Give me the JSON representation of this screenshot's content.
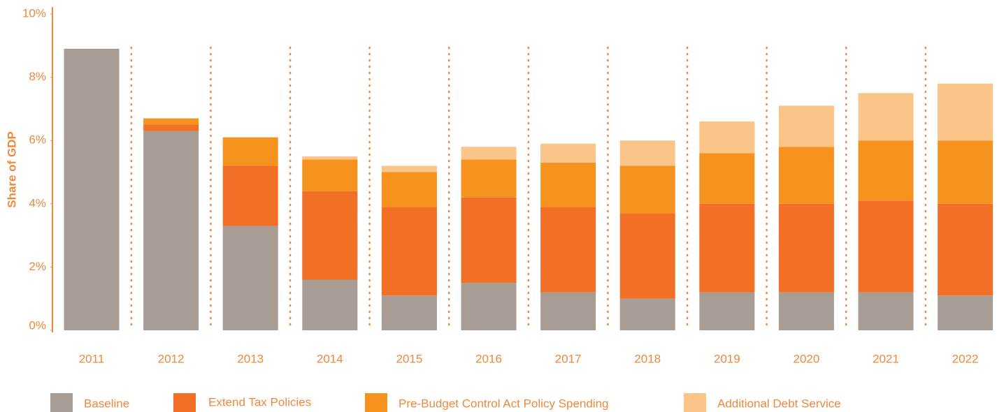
{
  "chart_data": {
    "type": "stacked_bar",
    "y_label": "Share of GDP",
    "categories": [
      "2011",
      "2012",
      "2013",
      "2014",
      "2015",
      "2016",
      "2017",
      "2018",
      "2019",
      "2020",
      "2021",
      "2022"
    ],
    "series": [
      {
        "name": "Baseline",
        "color": "#a89d94",
        "values": [
          8.9,
          6.3,
          3.3,
          1.6,
          1.1,
          1.5,
          1.2,
          1.0,
          1.2,
          1.2,
          1.2,
          1.1
        ]
      },
      {
        "name": "Extend Tax Policies",
        "color": "#f26f26",
        "values": [
          0,
          0.2,
          1.9,
          2.8,
          2.8,
          2.7,
          2.7,
          2.7,
          2.8,
          2.8,
          2.9,
          2.9
        ]
      },
      {
        "name": "Pre-Budget Control Act Policy Spending",
        "color": "#f6921e",
        "values": [
          0,
          0.2,
          0.9,
          1.0,
          1.1,
          1.2,
          1.4,
          1.5,
          1.6,
          1.8,
          1.9,
          2.0
        ]
      },
      {
        "name": "Additional Debt Service",
        "color": "#fbc58a",
        "values": [
          0,
          0,
          0,
          0.1,
          0.2,
          0.4,
          0.6,
          0.8,
          1.0,
          1.3,
          1.5,
          1.8
        ]
      }
    ],
    "ylim": [
      0,
      10
    ],
    "yticks": [
      {
        "value": 0,
        "label": "0%"
      },
      {
        "value": 2,
        "label": "2%"
      },
      {
        "value": 4,
        "label": "4%"
      },
      {
        "value": 6,
        "label": "6%"
      },
      {
        "value": 8,
        "label": "8%"
      },
      {
        "value": 10,
        "label": "10%"
      }
    ],
    "legend": "bottom"
  }
}
